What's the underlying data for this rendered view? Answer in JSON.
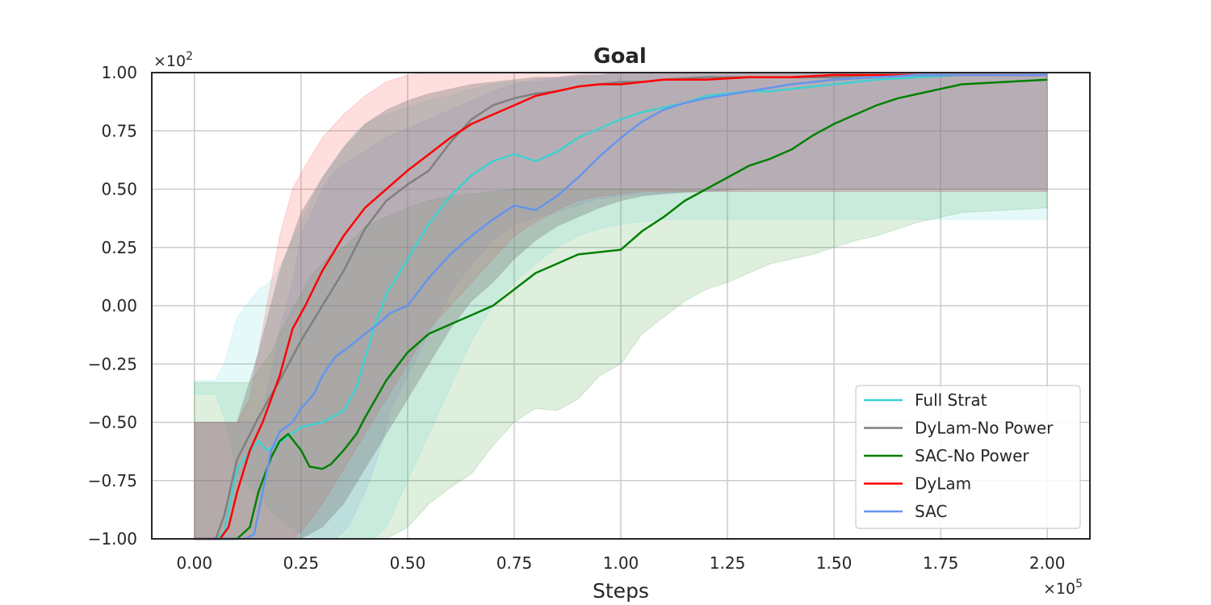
{
  "chart_data": {
    "type": "line",
    "title": "Goal",
    "xlabel": "Steps",
    "ylabel": "",
    "x_multiplier_label": "×10",
    "x_multiplier_exp": "5",
    "y_multiplier_label": "×10",
    "y_multiplier_exp": "2",
    "xlim": [
      -0.1,
      2.1
    ],
    "ylim": [
      -1.0,
      1.0
    ],
    "xticks": [
      0.0,
      0.25,
      0.5,
      0.75,
      1.0,
      1.25,
      1.5,
      1.75,
      2.0
    ],
    "xtick_labels": [
      "0.00",
      "0.25",
      "0.50",
      "0.75",
      "1.00",
      "1.25",
      "1.50",
      "1.75",
      "2.00"
    ],
    "yticks": [
      -1.0,
      -0.75,
      -0.5,
      -0.25,
      0.0,
      0.25,
      0.5,
      0.75,
      1.0
    ],
    "ytick_labels": [
      "−1.00",
      "−0.75",
      "−0.50",
      "−0.25",
      "0.00",
      "0.25",
      "0.50",
      "0.75",
      "1.00"
    ],
    "grid": true,
    "legend_position": "lower-right",
    "series": [
      {
        "name": "Full Strat",
        "color": "#40d0d0",
        "x": [
          0.0,
          0.05,
          0.07,
          0.1,
          0.15,
          0.17,
          0.19,
          0.25,
          0.3,
          0.35,
          0.38,
          0.42,
          0.45,
          0.5,
          0.55,
          0.6,
          0.65,
          0.7,
          0.75,
          0.8,
          0.85,
          0.9,
          0.95,
          1.0,
          1.05,
          1.1,
          1.15,
          1.2,
          1.25,
          1.3,
          1.35,
          1.4,
          1.5,
          1.6,
          1.7,
          1.8,
          1.9,
          2.0
        ],
        "y": [
          -1.0,
          -1.0,
          -0.97,
          -0.7,
          -0.58,
          -0.62,
          -0.6,
          -0.52,
          -0.5,
          -0.45,
          -0.35,
          -0.1,
          0.05,
          0.2,
          0.35,
          0.47,
          0.56,
          0.62,
          0.65,
          0.62,
          0.66,
          0.72,
          0.76,
          0.8,
          0.83,
          0.85,
          0.87,
          0.9,
          0.91,
          0.92,
          0.92,
          0.93,
          0.95,
          0.97,
          0.98,
          0.99,
          0.99,
          0.99
        ],
        "lower": [
          -0.38,
          -0.38,
          -0.48,
          -0.72,
          -0.82,
          -0.86,
          -0.9,
          -0.98,
          -1.0,
          -1.0,
          -1.0,
          -1.0,
          -0.95,
          -0.75,
          -0.55,
          -0.35,
          -0.15,
          0.0,
          0.1,
          0.18,
          0.25,
          0.3,
          0.33,
          0.35,
          0.36,
          0.37,
          0.37,
          0.37,
          0.37,
          0.37,
          0.37,
          0.37,
          0.37,
          0.37,
          0.37,
          0.37,
          0.37,
          0.37
        ],
        "upper": [
          -0.32,
          -0.32,
          -0.25,
          -0.05,
          0.07,
          0.09,
          0.13,
          0.35,
          0.55,
          0.68,
          0.75,
          0.8,
          0.82,
          0.85,
          0.88,
          0.9,
          0.93,
          0.95,
          0.96,
          0.96,
          0.97,
          0.98,
          0.99,
          1.0,
          1.0,
          1.0,
          1.0,
          1.0,
          1.0,
          1.0,
          1.0,
          1.0,
          1.0,
          1.0,
          1.0,
          1.0,
          1.0,
          1.0
        ]
      },
      {
        "name": "DyLam-No Power",
        "color": "#7f7f7f",
        "x": [
          0.0,
          0.05,
          0.07,
          0.1,
          0.15,
          0.2,
          0.25,
          0.3,
          0.35,
          0.4,
          0.45,
          0.5,
          0.55,
          0.6,
          0.65,
          0.7,
          0.75,
          0.8,
          0.85,
          0.9,
          0.95,
          1.0,
          1.05,
          1.1,
          1.2,
          1.3,
          1.4,
          1.5,
          1.6,
          1.7,
          1.8,
          1.9,
          2.0
        ],
        "y": [
          -1.0,
          -1.0,
          -0.9,
          -0.66,
          -0.48,
          -0.32,
          -0.15,
          0.0,
          0.15,
          0.33,
          0.45,
          0.52,
          0.58,
          0.7,
          0.8,
          0.86,
          0.89,
          0.91,
          0.92,
          0.94,
          0.95,
          0.96,
          0.96,
          0.97,
          0.98,
          0.98,
          0.98,
          0.98,
          0.99,
          0.99,
          0.99,
          0.99,
          0.99
        ],
        "lower": [
          -1.0,
          -1.0,
          -1.0,
          -1.0,
          -1.0,
          -1.0,
          -1.0,
          -0.95,
          -0.85,
          -0.7,
          -0.55,
          -0.4,
          -0.25,
          -0.1,
          0.02,
          0.1,
          0.2,
          0.28,
          0.34,
          0.38,
          0.42,
          0.45,
          0.47,
          0.48,
          0.49,
          0.5,
          0.5,
          0.5,
          0.5,
          0.5,
          0.5,
          0.5,
          0.5
        ],
        "upper": [
          -0.5,
          -0.5,
          -0.5,
          -0.5,
          -0.2,
          0.15,
          0.4,
          0.55,
          0.68,
          0.78,
          0.84,
          0.88,
          0.91,
          0.93,
          0.95,
          0.96,
          0.97,
          0.98,
          0.98,
          0.99,
          0.99,
          1.0,
          1.0,
          1.0,
          1.0,
          1.0,
          1.0,
          1.0,
          1.0,
          1.0,
          1.0,
          1.0,
          1.0
        ]
      },
      {
        "name": "SAC-No Power",
        "color": "#008000",
        "x": [
          0.0,
          0.1,
          0.13,
          0.15,
          0.18,
          0.2,
          0.22,
          0.25,
          0.27,
          0.3,
          0.32,
          0.35,
          0.38,
          0.4,
          0.45,
          0.5,
          0.55,
          0.6,
          0.65,
          0.7,
          0.75,
          0.8,
          0.85,
          0.9,
          0.95,
          1.0,
          1.05,
          1.1,
          1.15,
          1.2,
          1.25,
          1.3,
          1.35,
          1.4,
          1.45,
          1.5,
          1.55,
          1.6,
          1.65,
          1.7,
          1.75,
          1.8,
          1.9,
          2.0
        ],
        "y": [
          -1.0,
          -1.0,
          -0.95,
          -0.8,
          -0.65,
          -0.58,
          -0.55,
          -0.62,
          -0.69,
          -0.7,
          -0.68,
          -0.62,
          -0.55,
          -0.48,
          -0.32,
          -0.2,
          -0.12,
          -0.08,
          -0.04,
          0.0,
          0.07,
          0.14,
          0.18,
          0.22,
          0.23,
          0.24,
          0.32,
          0.38,
          0.45,
          0.5,
          0.55,
          0.6,
          0.63,
          0.67,
          0.73,
          0.78,
          0.82,
          0.86,
          0.89,
          0.91,
          0.93,
          0.95,
          0.96,
          0.97
        ],
        "lower": [
          -1.0,
          -1.0,
          -1.0,
          -1.0,
          -1.0,
          -1.0,
          -1.0,
          -1.0,
          -1.0,
          -1.0,
          -1.0,
          -1.0,
          -1.0,
          -1.0,
          -1.0,
          -0.95,
          -0.85,
          -0.78,
          -0.72,
          -0.6,
          -0.5,
          -0.44,
          -0.45,
          -0.4,
          -0.3,
          -0.25,
          -0.12,
          -0.05,
          0.02,
          0.07,
          0.1,
          0.14,
          0.18,
          0.2,
          0.22,
          0.25,
          0.28,
          0.3,
          0.33,
          0.36,
          0.38,
          0.4,
          0.41,
          0.42
        ],
        "upper": [
          -0.33,
          -0.33,
          -0.33,
          -0.28,
          -0.2,
          -0.12,
          -0.05,
          0.05,
          0.12,
          0.18,
          0.22,
          0.25,
          0.3,
          0.34,
          0.38,
          0.42,
          0.45,
          0.47,
          0.48,
          0.49,
          0.5,
          0.5,
          0.5,
          0.5,
          0.5,
          0.5,
          0.5,
          0.5,
          0.5,
          0.5,
          0.5,
          0.5,
          0.5,
          0.5,
          0.5,
          0.5,
          0.5,
          0.5,
          0.5,
          0.5,
          0.5,
          0.5,
          0.5,
          0.5
        ]
      },
      {
        "name": "DyLam",
        "color": "#ff0000",
        "x": [
          0.0,
          0.06,
          0.08,
          0.1,
          0.13,
          0.16,
          0.2,
          0.23,
          0.26,
          0.3,
          0.35,
          0.4,
          0.45,
          0.5,
          0.55,
          0.6,
          0.65,
          0.7,
          0.75,
          0.8,
          0.85,
          0.9,
          0.95,
          1.0,
          1.05,
          1.1,
          1.2,
          1.3,
          1.4,
          1.5,
          1.6,
          1.7,
          1.8,
          1.9,
          2.0
        ],
        "y": [
          -1.0,
          -1.0,
          -0.95,
          -0.8,
          -0.62,
          -0.5,
          -0.3,
          -0.1,
          0.0,
          0.15,
          0.3,
          0.42,
          0.5,
          0.58,
          0.65,
          0.72,
          0.78,
          0.82,
          0.86,
          0.9,
          0.92,
          0.94,
          0.95,
          0.95,
          0.96,
          0.97,
          0.97,
          0.98,
          0.98,
          0.99,
          0.99,
          0.99,
          0.99,
          0.99,
          0.99
        ],
        "lower": [
          -1.0,
          -1.0,
          -1.0,
          -1.0,
          -1.0,
          -1.0,
          -1.0,
          -1.0,
          -0.95,
          -0.85,
          -0.7,
          -0.55,
          -0.4,
          -0.25,
          -0.1,
          0.0,
          0.1,
          0.2,
          0.3,
          0.36,
          0.41,
          0.45,
          0.47,
          0.48,
          0.49,
          0.49,
          0.49,
          0.49,
          0.49,
          0.49,
          0.49,
          0.49,
          0.49,
          0.49,
          0.49
        ],
        "upper": [
          -0.5,
          -0.5,
          -0.5,
          -0.5,
          -0.4,
          -0.1,
          0.3,
          0.5,
          0.6,
          0.72,
          0.82,
          0.9,
          0.96,
          0.99,
          1.0,
          1.0,
          1.0,
          1.0,
          1.0,
          1.0,
          1.0,
          1.0,
          1.0,
          1.0,
          1.0,
          1.0,
          1.0,
          1.0,
          1.0,
          1.0,
          1.0,
          1.0,
          1.0,
          1.0,
          1.0
        ]
      },
      {
        "name": "SAC",
        "color": "#6495ed",
        "x": [
          0.0,
          0.12,
          0.14,
          0.16,
          0.18,
          0.2,
          0.23,
          0.25,
          0.28,
          0.3,
          0.33,
          0.36,
          0.4,
          0.43,
          0.46,
          0.5,
          0.55,
          0.6,
          0.65,
          0.7,
          0.75,
          0.8,
          0.85,
          0.9,
          0.95,
          1.0,
          1.05,
          1.1,
          1.15,
          1.2,
          1.3,
          1.4,
          1.5,
          1.6,
          1.7,
          1.8,
          1.9,
          2.0
        ],
        "y": [
          -1.0,
          -1.0,
          -0.98,
          -0.8,
          -0.62,
          -0.54,
          -0.5,
          -0.44,
          -0.38,
          -0.3,
          -0.22,
          -0.18,
          -0.12,
          -0.08,
          -0.03,
          0.0,
          0.12,
          0.22,
          0.3,
          0.37,
          0.43,
          0.41,
          0.47,
          0.55,
          0.64,
          0.72,
          0.79,
          0.84,
          0.87,
          0.89,
          0.92,
          0.95,
          0.97,
          0.98,
          0.99,
          0.99,
          0.99,
          0.99
        ],
        "lower": [
          -1.0,
          -1.0,
          -1.0,
          -1.0,
          -1.0,
          -1.0,
          -1.0,
          -1.0,
          -1.0,
          -1.0,
          -1.0,
          -0.95,
          -0.8,
          -0.65,
          -0.45,
          -0.3,
          -0.12,
          0.05,
          0.18,
          0.28,
          0.35,
          0.38,
          0.4,
          0.43,
          0.46,
          0.47,
          0.48,
          0.48,
          0.49,
          0.49,
          0.49,
          0.49,
          0.49,
          0.49,
          0.49,
          0.49,
          0.49,
          0.49
        ],
        "upper": [
          -0.5,
          -0.5,
          -0.5,
          -0.45,
          -0.3,
          -0.1,
          0.1,
          0.3,
          0.42,
          0.5,
          0.58,
          0.62,
          0.66,
          0.7,
          0.73,
          0.76,
          0.8,
          0.84,
          0.88,
          0.92,
          0.95,
          0.97,
          0.98,
          0.99,
          1.0,
          1.0,
          1.0,
          1.0,
          1.0,
          1.0,
          1.0,
          1.0,
          1.0,
          1.0,
          1.0,
          1.0,
          1.0,
          1.0
        ]
      }
    ]
  }
}
